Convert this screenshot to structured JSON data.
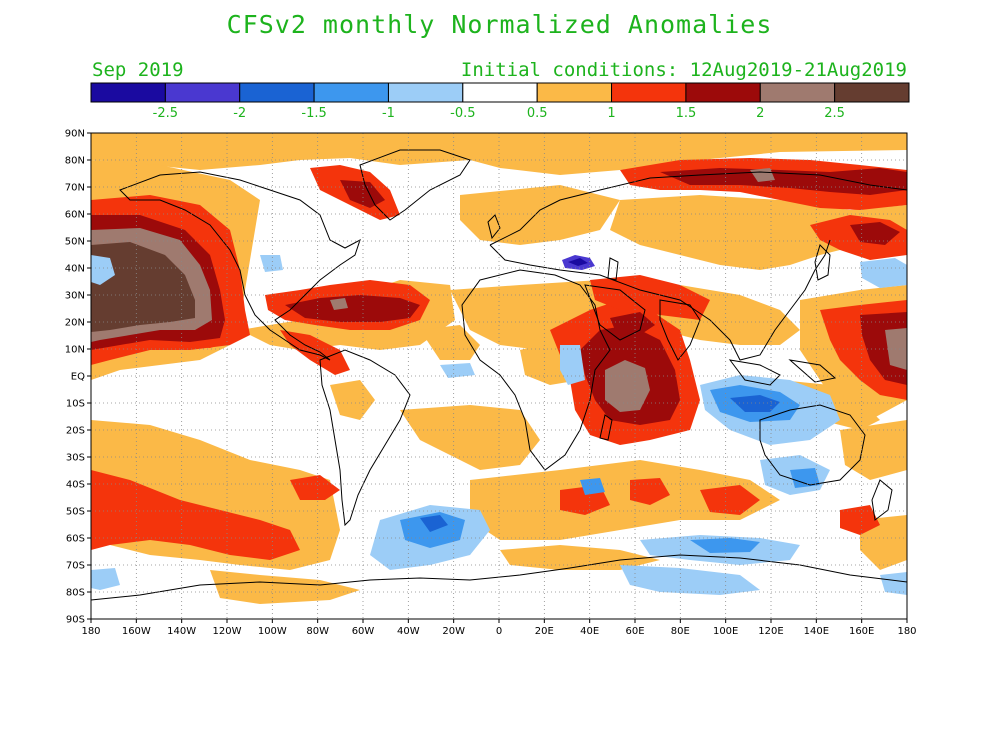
{
  "title": "CFSv2 monthly Normalized Anomalies",
  "month": "Sep 2019",
  "initial_conditions": "Initial conditions: 12Aug2019-21Aug2019",
  "colorbar": {
    "colors": [
      "#1a0aa0",
      "#4a38d0",
      "#1a63d3",
      "#3d97ee",
      "#9ccdf7",
      "#ffffff",
      "#fbb947",
      "#f4340c",
      "#9c0a0a",
      "#9f7a6f",
      "#653d30"
    ],
    "labels": [
      "-2.5",
      "-2",
      "-1.5",
      "-1",
      "-0.5",
      "0.5",
      "1",
      "1.5",
      "2",
      "2.5"
    ]
  },
  "axes": {
    "lat_labels": [
      "90N",
      "80N",
      "70N",
      "60N",
      "50N",
      "40N",
      "30N",
      "20N",
      "10N",
      "EQ",
      "10S",
      "20S",
      "30S",
      "40S",
      "50S",
      "60S",
      "70S",
      "80S",
      "90S"
    ],
    "lon_labels": [
      "180",
      "160W",
      "140W",
      "120W",
      "100W",
      "80W",
      "60W",
      "40W",
      "20W",
      "0",
      "20E",
      "40E",
      "60E",
      "80E",
      "100E",
      "120E",
      "140E",
      "160E",
      "180"
    ]
  },
  "grid": "dotted"
}
